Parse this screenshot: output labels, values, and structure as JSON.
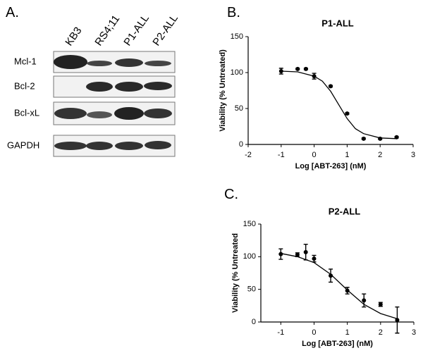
{
  "panel_labels": [
    "A.",
    "B.",
    "C."
  ],
  "blot": {
    "lanes": [
      "KB3",
      "RS4;11",
      "P1-ALL",
      "P2-ALL"
    ],
    "rows": [
      "Mcl-1",
      "Bcl-2",
      "Bcl-xL",
      "GAPDH"
    ]
  },
  "chart_data": [
    {
      "type": "scatter",
      "title": "P1-ALL",
      "x_label": "Log [ABT-263] (nM)",
      "y_label": "Viability (% Untreated)",
      "x": [
        -1,
        -0.5,
        -0.25,
        0,
        0.5,
        1,
        1.5,
        2,
        2.5
      ],
      "values": [
        102,
        105,
        105,
        95,
        81,
        43,
        8,
        8,
        10
      ],
      "errors": [
        4,
        1,
        1,
        4,
        1,
        1,
        1,
        1,
        1
      ],
      "curve_x": [
        -1,
        -0.5,
        0,
        0.25,
        0.5,
        0.75,
        1,
        1.25,
        1.5,
        2,
        2.5
      ],
      "curve_values": [
        102,
        101,
        95,
        88,
        74,
        55,
        36,
        22,
        15,
        9,
        8
      ],
      "color": "#000000",
      "xlim": [
        -2,
        3
      ],
      "xticks": [
        -2,
        -1,
        0,
        1,
        2,
        3
      ],
      "ylim": [
        0,
        150
      ],
      "yticks": [
        0,
        50,
        100,
        150
      ]
    },
    {
      "type": "scatter",
      "title": "P2-ALL",
      "x_label": "Log [ABT-263] (nM)",
      "y_label": "Viability (% Untreated",
      "x": [
        -1,
        -0.5,
        -0.25,
        0,
        0.5,
        1,
        1.5,
        2,
        2.5
      ],
      "values": [
        104,
        103,
        107,
        97,
        71,
        48,
        33,
        27,
        3
      ],
      "errors": [
        8,
        3,
        12,
        5,
        10,
        5,
        10,
        3,
        20
      ],
      "curve_x": [
        -1,
        -0.5,
        0,
        0.5,
        1,
        1.5,
        2,
        2.5
      ],
      "curve_values": [
        105,
        100,
        91,
        73,
        49,
        27,
        13,
        5
      ],
      "color": "#000000",
      "xlim": [
        -1.6,
        3
      ],
      "xticks": [
        -1,
        0,
        1,
        2,
        3
      ],
      "ylim": [
        0,
        150
      ],
      "yticks": [
        0,
        50,
        100,
        150
      ]
    }
  ]
}
